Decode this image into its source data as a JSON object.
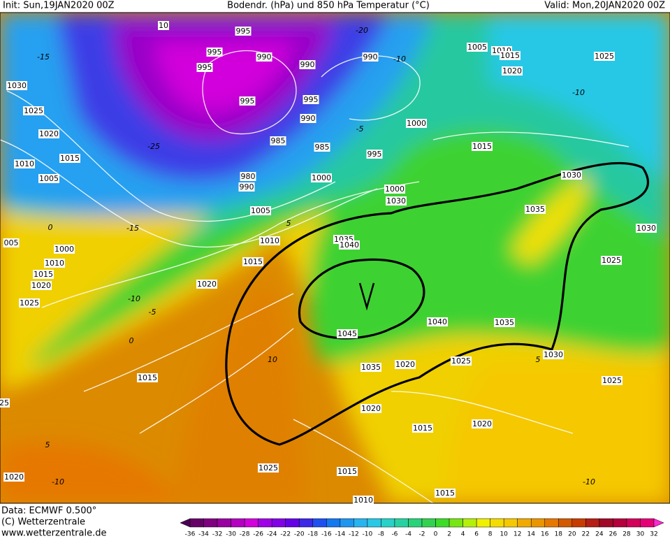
{
  "header": {
    "init": "Init: Sun,19JAN2020 00Z",
    "title": "Bodendr. (hPa) und 850 hPa Temperatur (°C)",
    "valid": "Valid: Mon,20JAN2020 00Z"
  },
  "footer": {
    "data": "Data: ECMWF  0.500°",
    "copyright": "(C) Wetterzentrale",
    "url": "www.wetterzentrale.de"
  },
  "isobar_labels": [
    "10",
    "995",
    "995",
    "995",
    "990",
    "990",
    "990",
    "1005",
    "1010",
    "1015",
    "1020",
    "1025",
    "1030",
    "1025",
    "1020",
    "1015",
    "1010",
    "1005",
    "995",
    "995",
    "990",
    "985",
    "985",
    "995",
    "1000",
    "1015",
    "980",
    "990",
    "1000",
    "1030",
    "1000",
    "1030",
    "1005",
    "1035",
    "1030",
    "1010",
    "1035",
    "1040",
    "005",
    "1000",
    "1010",
    "1015",
    "1020",
    "1015",
    "1025",
    "1020",
    "1025",
    "1040",
    "1035",
    "1045",
    "1030",
    "1025",
    "1035",
    "1020",
    "1015",
    "1025",
    "25",
    "1020",
    "1015",
    "1020",
    "1025",
    "1015",
    "1020",
    "1015",
    "1010"
  ],
  "isotherm_labels": [
    "-15",
    "-20",
    "-10",
    "-25",
    "-5",
    "-10",
    "0",
    "-15",
    "-10",
    "-5",
    "5",
    "10",
    "5",
    "-10",
    "-10",
    "5",
    "0"
  ],
  "color_scale": {
    "ticks": [
      -36,
      -34,
      -32,
      -30,
      -28,
      -26,
      -24,
      -22,
      -20,
      -18,
      -16,
      -14,
      -12,
      -10,
      -8,
      -6,
      -4,
      -2,
      0,
      2,
      4,
      6,
      8,
      10,
      12,
      14,
      16,
      18,
      20,
      22,
      24,
      26,
      28,
      30,
      32
    ],
    "colors": [
      "#4a0055",
      "#660066",
      "#7f0080",
      "#9900a0",
      "#b400c0",
      "#d200dc",
      "#a000e6",
      "#8200e6",
      "#6400e6",
      "#3c28e6",
      "#1e50f0",
      "#1478f0",
      "#1e96f0",
      "#28b4f0",
      "#28c8e6",
      "#28d2c8",
      "#28d2a0",
      "#28d278",
      "#32d250",
      "#3cdc28",
      "#78e614",
      "#b4f00a",
      "#f0f000",
      "#f5dc00",
      "#f5c800",
      "#f0aa00",
      "#eb9600",
      "#e67800",
      "#d25a00",
      "#c83c00",
      "#b41e14",
      "#a00a28",
      "#b4003c",
      "#d2005a",
      "#e60078",
      "#ff28d2"
    ]
  }
}
